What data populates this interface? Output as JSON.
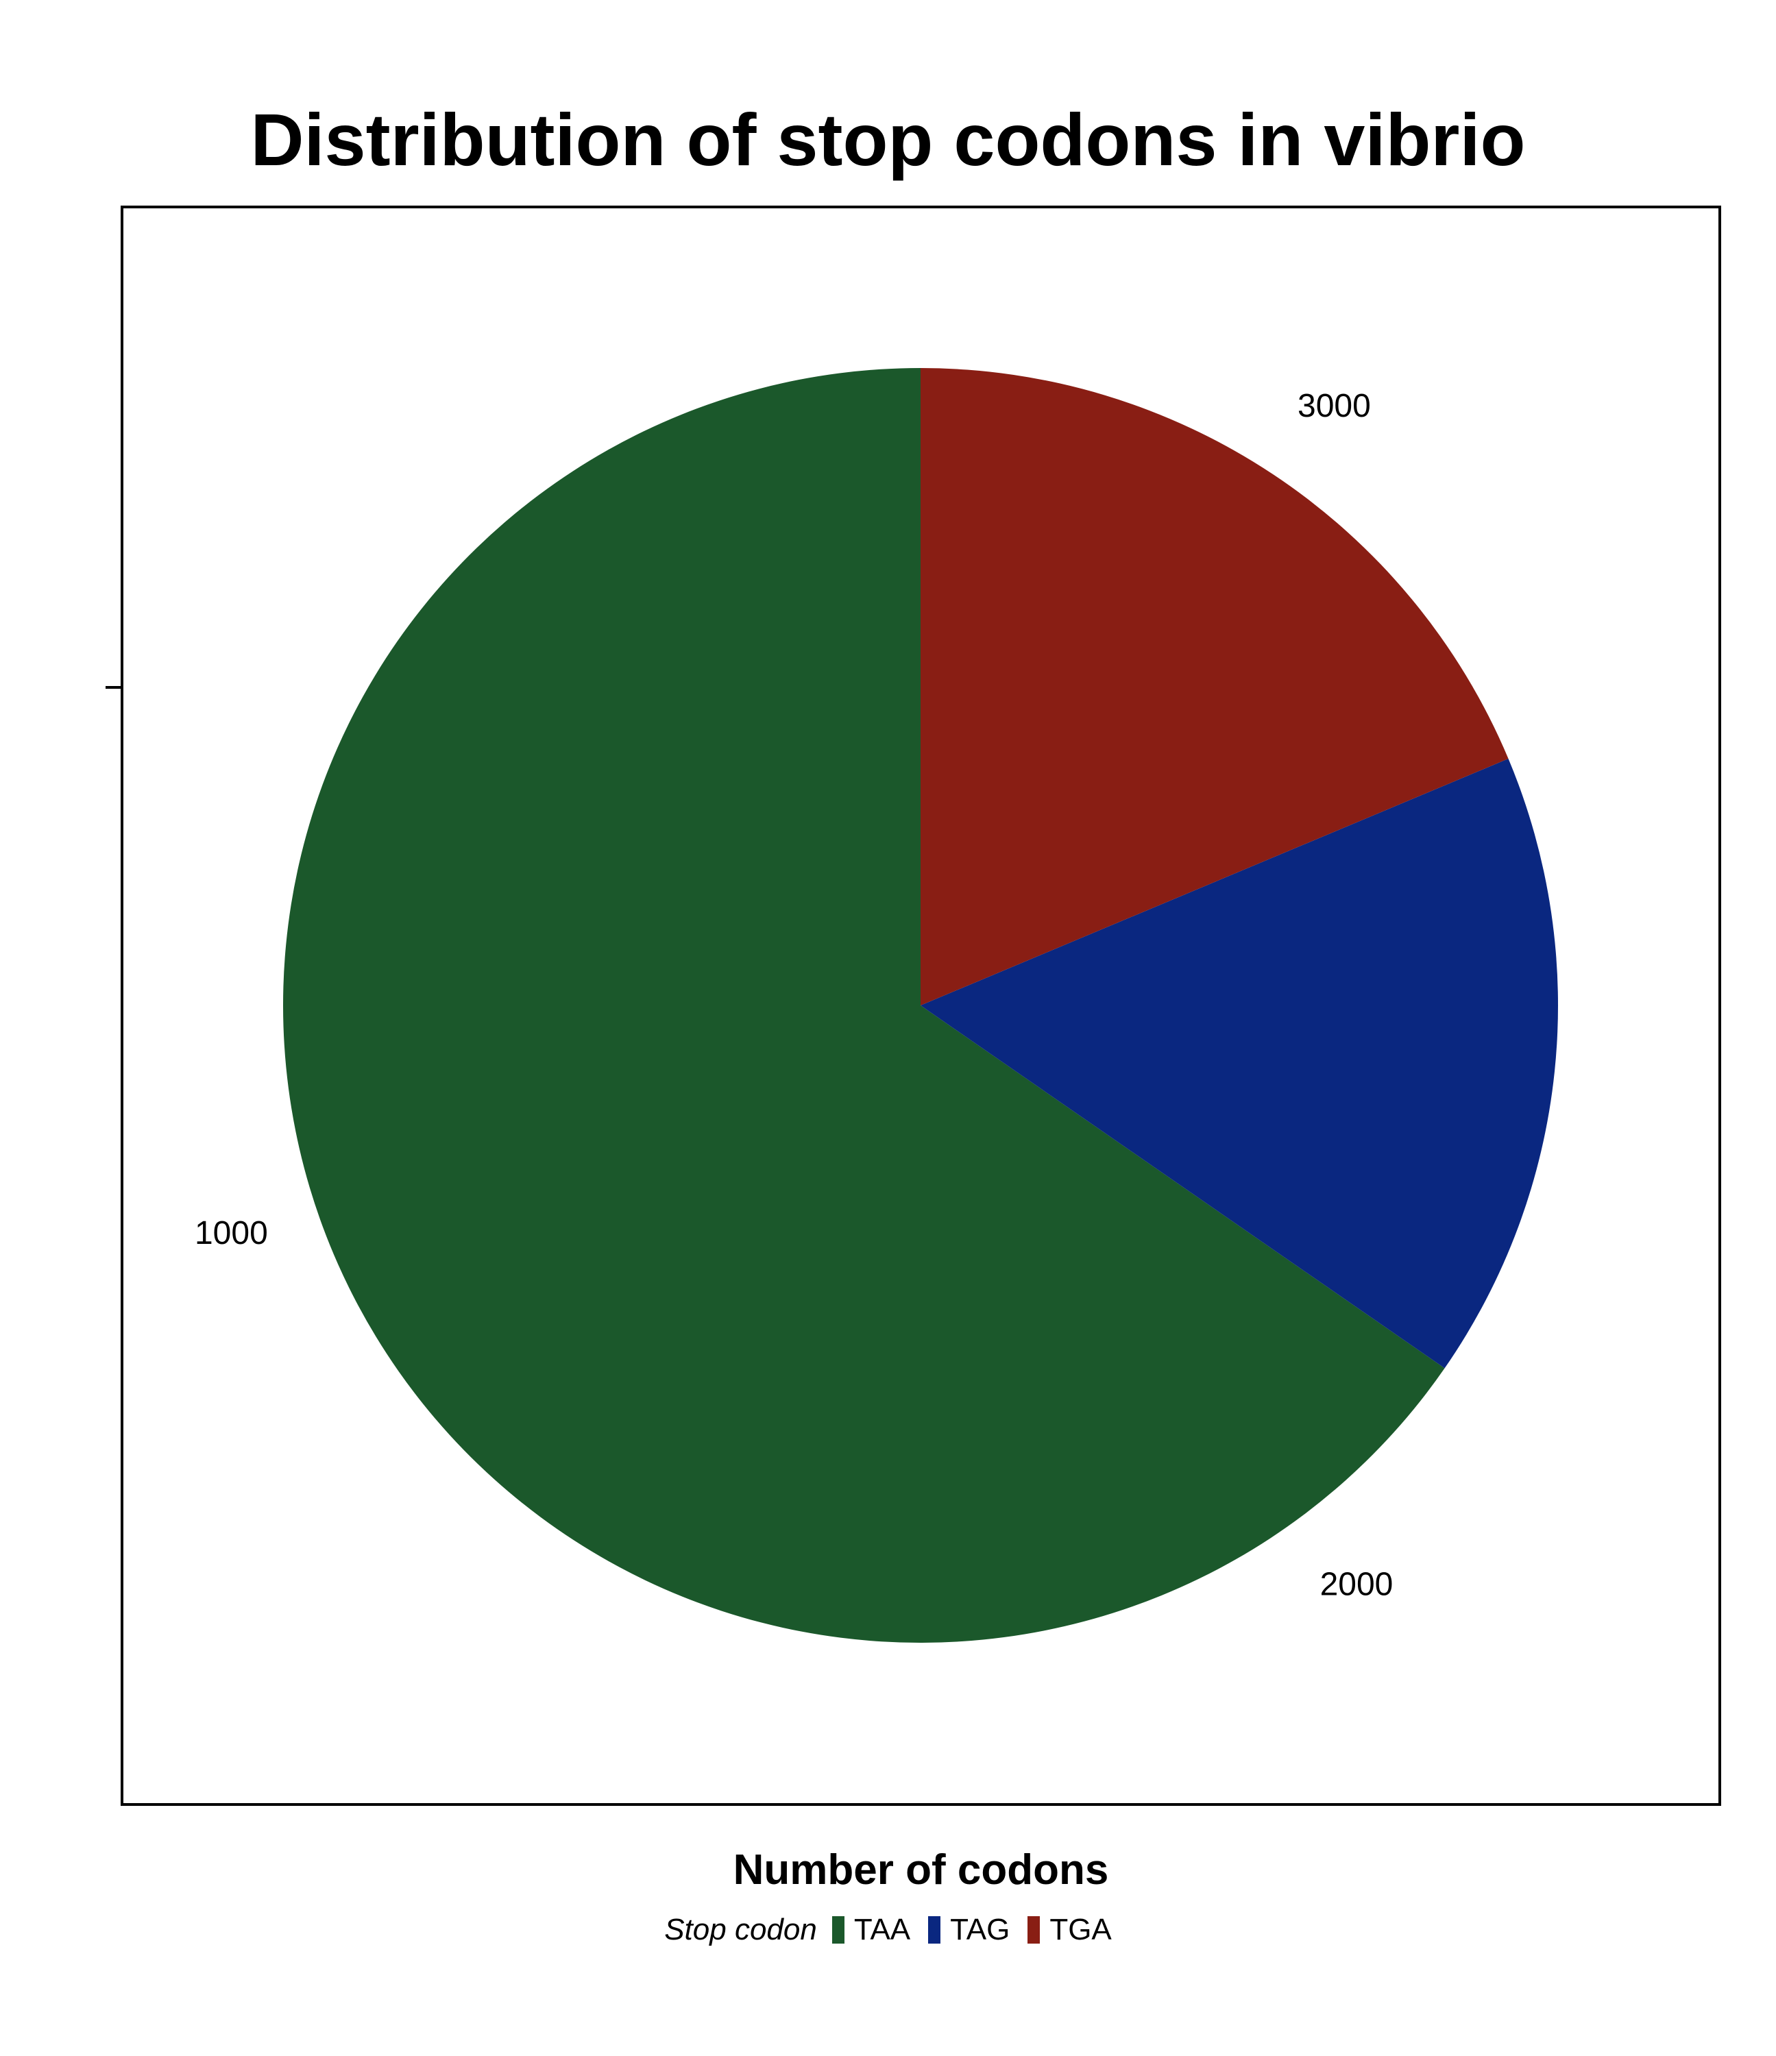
{
  "chart_data": {
    "type": "pie",
    "title": "Distribution of stop codons in vibrio",
    "xlabel": "Number of codons",
    "ylabel": "",
    "legend_position": "bottom",
    "legend": {
      "title": "Stop codon",
      "entries": [
        "TAA",
        "TAG",
        "TGA"
      ]
    },
    "categories": [
      "TAA",
      "TAG",
      "TGA"
    ],
    "values": [
      2170,
      530,
      620
    ],
    "colors": [
      "#1b582b",
      "#0a2780",
      "#891e14"
    ],
    "theta_ticks": [
      {
        "label": "1000",
        "value": 1000
      },
      {
        "label": "2000",
        "value": 2000
      },
      {
        "label": "3000",
        "value": 3000
      }
    ],
    "start": "12 o'clock",
    "direction": "counterclockwise",
    "grid": false
  }
}
